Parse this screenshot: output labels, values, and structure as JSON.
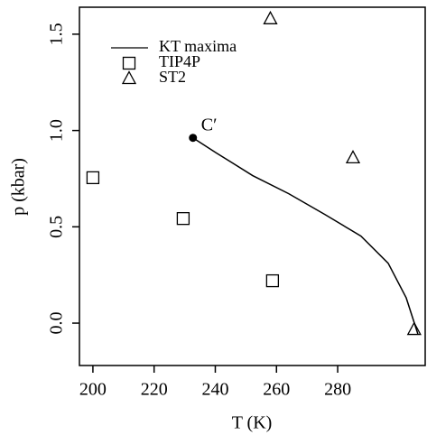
{
  "chart_data": {
    "type": "line",
    "xlabel": "T (K)",
    "ylabel": "p (kbar)",
    "xlim": [
      195.6,
      308.6
    ],
    "ylim": [
      -0.22,
      1.64
    ],
    "xticks": [
      200,
      220,
      240,
      260,
      280
    ],
    "yticks": [
      {
        "value": 0,
        "label": "0.0"
      },
      0.5,
      {
        "value": 1,
        "label": "1.0"
      },
      1.5
    ],
    "legend": "top-left",
    "series": [
      {
        "name": "KT maxima",
        "marker": "line",
        "color": "#000000",
        "x": [
          232.7,
          240.4,
          252.2,
          264.0,
          275.8,
          287.6,
          296.5,
          302.4,
          306.2
        ],
        "values": [
          0.962,
          0.883,
          0.766,
          0.672,
          0.564,
          0.452,
          0.311,
          0.131,
          -0.056
        ]
      },
      {
        "name": "TIP4P",
        "marker": "square",
        "color": "#000000",
        "x": [
          200,
          229.5,
          258.7
        ],
        "values": [
          0.755,
          0.543,
          0.22
        ]
      },
      {
        "name": "ST2",
        "marker": "triangle",
        "color": "#000000",
        "x": [
          258,
          285,
          305
        ],
        "values": [
          1.58,
          0.858,
          -0.033
        ]
      }
    ],
    "annotations": [
      {
        "text": "C′",
        "x": 232.7,
        "y": 0.962
      }
    ]
  }
}
